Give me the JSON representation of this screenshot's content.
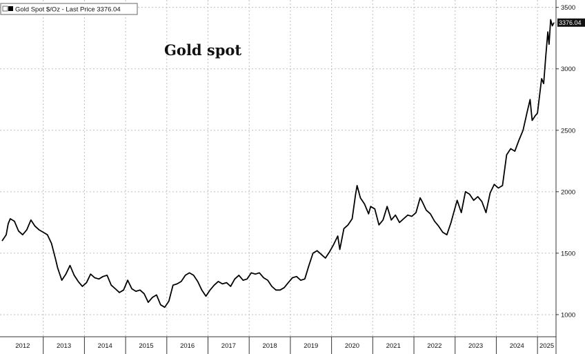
{
  "chart_data": {
    "type": "line",
    "title": "Gold spot",
    "legend": {
      "label": "Gold Spot $/Oz - Last Price 3376.04",
      "position": "top-left",
      "color": "#000000"
    },
    "last_value_label": "3376.04",
    "x_unit": "year",
    "xlim": [
      2011.95,
      2025.45
    ],
    "ylim": [
      820,
      3560
    ],
    "y_ticks": [
      1000,
      1500,
      2000,
      2500,
      3000,
      3500
    ],
    "y_tick_labels": [
      "1000",
      "1500",
      "2000",
      "2500",
      "3000",
      "3500"
    ],
    "x_tick_labels": [
      "2012",
      "2013",
      "2014",
      "2015",
      "2016",
      "2017",
      "2018",
      "2019",
      "2020",
      "2021",
      "2022",
      "2023",
      "2024",
      "2025"
    ],
    "grid": true,
    "line_color": "#000000",
    "series": [
      {
        "values": [
          [
            2012.0,
            1600
          ],
          [
            2012.1,
            1650
          ],
          [
            2012.15,
            1740
          ],
          [
            2012.2,
            1780
          ],
          [
            2012.3,
            1760
          ],
          [
            2012.4,
            1680
          ],
          [
            2012.5,
            1650
          ],
          [
            2012.6,
            1690
          ],
          [
            2012.7,
            1770
          ],
          [
            2012.8,
            1720
          ],
          [
            2012.9,
            1690
          ],
          [
            2013.0,
            1670
          ],
          [
            2013.1,
            1650
          ],
          [
            2013.2,
            1580
          ],
          [
            2013.3,
            1450
          ],
          [
            2013.35,
            1380
          ],
          [
            2013.45,
            1280
          ],
          [
            2013.55,
            1330
          ],
          [
            2013.65,
            1400
          ],
          [
            2013.75,
            1320
          ],
          [
            2013.85,
            1270
          ],
          [
            2013.95,
            1230
          ],
          [
            2014.05,
            1260
          ],
          [
            2014.15,
            1330
          ],
          [
            2014.25,
            1300
          ],
          [
            2014.35,
            1290
          ],
          [
            2014.45,
            1310
          ],
          [
            2014.55,
            1320
          ],
          [
            2014.65,
            1240
          ],
          [
            2014.75,
            1210
          ],
          [
            2014.85,
            1180
          ],
          [
            2014.95,
            1200
          ],
          [
            2015.05,
            1280
          ],
          [
            2015.15,
            1210
          ],
          [
            2015.25,
            1190
          ],
          [
            2015.35,
            1200
          ],
          [
            2015.45,
            1170
          ],
          [
            2015.55,
            1100
          ],
          [
            2015.65,
            1140
          ],
          [
            2015.75,
            1160
          ],
          [
            2015.85,
            1080
          ],
          [
            2015.95,
            1060
          ],
          [
            2016.05,
            1110
          ],
          [
            2016.15,
            1240
          ],
          [
            2016.25,
            1250
          ],
          [
            2016.35,
            1270
          ],
          [
            2016.45,
            1320
          ],
          [
            2016.55,
            1340
          ],
          [
            2016.65,
            1320
          ],
          [
            2016.75,
            1270
          ],
          [
            2016.85,
            1200
          ],
          [
            2016.95,
            1150
          ],
          [
            2017.05,
            1200
          ],
          [
            2017.15,
            1240
          ],
          [
            2017.25,
            1270
          ],
          [
            2017.35,
            1250
          ],
          [
            2017.45,
            1260
          ],
          [
            2017.55,
            1230
          ],
          [
            2017.65,
            1290
          ],
          [
            2017.75,
            1320
          ],
          [
            2017.85,
            1280
          ],
          [
            2017.95,
            1290
          ],
          [
            2018.05,
            1340
          ],
          [
            2018.15,
            1330
          ],
          [
            2018.25,
            1340
          ],
          [
            2018.35,
            1300
          ],
          [
            2018.45,
            1280
          ],
          [
            2018.55,
            1230
          ],
          [
            2018.65,
            1200
          ],
          [
            2018.75,
            1200
          ],
          [
            2018.85,
            1220
          ],
          [
            2018.95,
            1260
          ],
          [
            2019.05,
            1300
          ],
          [
            2019.15,
            1310
          ],
          [
            2019.25,
            1280
          ],
          [
            2019.35,
            1290
          ],
          [
            2019.45,
            1400
          ],
          [
            2019.55,
            1500
          ],
          [
            2019.65,
            1520
          ],
          [
            2019.75,
            1490
          ],
          [
            2019.85,
            1460
          ],
          [
            2019.95,
            1510
          ],
          [
            2020.05,
            1570
          ],
          [
            2020.15,
            1640
          ],
          [
            2020.2,
            1530
          ],
          [
            2020.3,
            1700
          ],
          [
            2020.4,
            1730
          ],
          [
            2020.5,
            1780
          ],
          [
            2020.58,
            1970
          ],
          [
            2020.62,
            2050
          ],
          [
            2020.7,
            1950
          ],
          [
            2020.8,
            1900
          ],
          [
            2020.9,
            1820
          ],
          [
            2020.95,
            1880
          ],
          [
            2021.05,
            1860
          ],
          [
            2021.15,
            1730
          ],
          [
            2021.25,
            1770
          ],
          [
            2021.35,
            1880
          ],
          [
            2021.45,
            1770
          ],
          [
            2021.55,
            1810
          ],
          [
            2021.65,
            1750
          ],
          [
            2021.75,
            1780
          ],
          [
            2021.85,
            1810
          ],
          [
            2021.95,
            1800
          ],
          [
            2022.05,
            1830
          ],
          [
            2022.15,
            1950
          ],
          [
            2022.2,
            1920
          ],
          [
            2022.3,
            1850
          ],
          [
            2022.4,
            1820
          ],
          [
            2022.5,
            1760
          ],
          [
            2022.6,
            1720
          ],
          [
            2022.7,
            1670
          ],
          [
            2022.8,
            1650
          ],
          [
            2022.9,
            1750
          ],
          [
            2022.95,
            1810
          ],
          [
            2023.05,
            1930
          ],
          [
            2023.15,
            1830
          ],
          [
            2023.25,
            2000
          ],
          [
            2023.35,
            1980
          ],
          [
            2023.45,
            1930
          ],
          [
            2023.55,
            1960
          ],
          [
            2023.65,
            1920
          ],
          [
            2023.75,
            1830
          ],
          [
            2023.85,
            1990
          ],
          [
            2023.95,
            2060
          ],
          [
            2024.05,
            2030
          ],
          [
            2024.15,
            2050
          ],
          [
            2024.25,
            2300
          ],
          [
            2024.35,
            2350
          ],
          [
            2024.45,
            2330
          ],
          [
            2024.55,
            2420
          ],
          [
            2024.65,
            2500
          ],
          [
            2024.75,
            2650
          ],
          [
            2024.82,
            2750
          ],
          [
            2024.87,
            2580
          ],
          [
            2024.95,
            2620
          ],
          [
            2025.0,
            2640
          ],
          [
            2025.05,
            2780
          ],
          [
            2025.1,
            2920
          ],
          [
            2025.15,
            2880
          ],
          [
            2025.2,
            3100
          ],
          [
            2025.25,
            3300
          ],
          [
            2025.28,
            3200
          ],
          [
            2025.32,
            3400
          ],
          [
            2025.36,
            3350
          ],
          [
            2025.4,
            3376.04
          ]
        ]
      }
    ]
  }
}
